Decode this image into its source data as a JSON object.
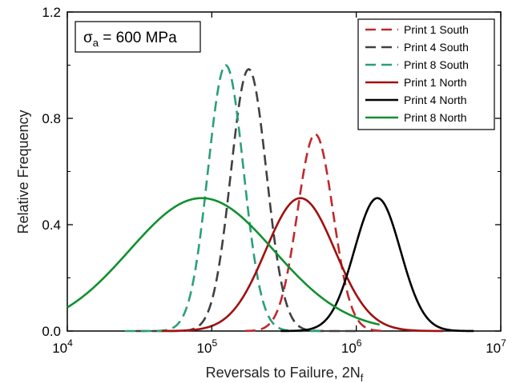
{
  "chart_data": {
    "type": "line",
    "inset_label": {
      "symbol": "σ",
      "subscript": "a",
      "text": " = 600 MPa"
    },
    "xlabel": {
      "text": "Reversals to Failure, 2N",
      "subscript": "f"
    },
    "ylabel": "Relative Frequency",
    "x_scale": "log",
    "xlim": [
      10000,
      10000000
    ],
    "ylim": [
      0.0,
      1.2
    ],
    "x_ticks": [
      {
        "value": 10000,
        "base": "10",
        "exp": "4"
      },
      {
        "value": 100000,
        "base": "10",
        "exp": "5"
      },
      {
        "value": 1000000,
        "base": "10",
        "exp": "6"
      },
      {
        "value": 10000000,
        "base": "10",
        "exp": "7"
      }
    ],
    "y_ticks": [
      {
        "value": 0.0,
        "label": "0.0"
      },
      {
        "value": 0.4,
        "label": "0.4"
      },
      {
        "value": 0.8,
        "label": "0.8"
      },
      {
        "value": 1.2,
        "label": "1.2"
      }
    ],
    "grid": false,
    "legend_position": "top-right",
    "series": [
      {
        "name": "Print 1 South",
        "color": "#c0282d",
        "dash": true,
        "peak_x": 520000,
        "peak_y": 0.74,
        "sigma_log10": 0.123,
        "x_range": [
          170000,
          1550000
        ]
      },
      {
        "name": "Print 4 South",
        "color": "#404040",
        "dash": true,
        "peak_x": 180000,
        "peak_y": 0.985,
        "sigma_log10": 0.123,
        "x_range": [
          30000,
          1000000
        ]
      },
      {
        "name": "Print 8 South",
        "color": "#2aa078",
        "dash": true,
        "peak_x": 125000,
        "peak_y": 1.0,
        "sigma_log10": 0.123,
        "x_range": [
          25000,
          600000
        ]
      },
      {
        "name": "Print 1 North",
        "color": "#a01010",
        "dash": false,
        "peak_x": 410000,
        "peak_y": 0.5,
        "sigma_log10": 0.24,
        "x_range": [
          45000,
          4000000
        ]
      },
      {
        "name": "Print 4 North",
        "color": "#000000",
        "dash": false,
        "peak_x": 1400000,
        "peak_y": 0.5,
        "sigma_log10": 0.16,
        "x_range": [
          300000,
          6500000
        ]
      },
      {
        "name": "Print 8 North",
        "color": "#109030",
        "dash": false,
        "peak_x": 85000,
        "peak_y": 0.5,
        "sigma_log10": 0.5,
        "x_range": [
          10000,
          1450000
        ]
      }
    ]
  }
}
